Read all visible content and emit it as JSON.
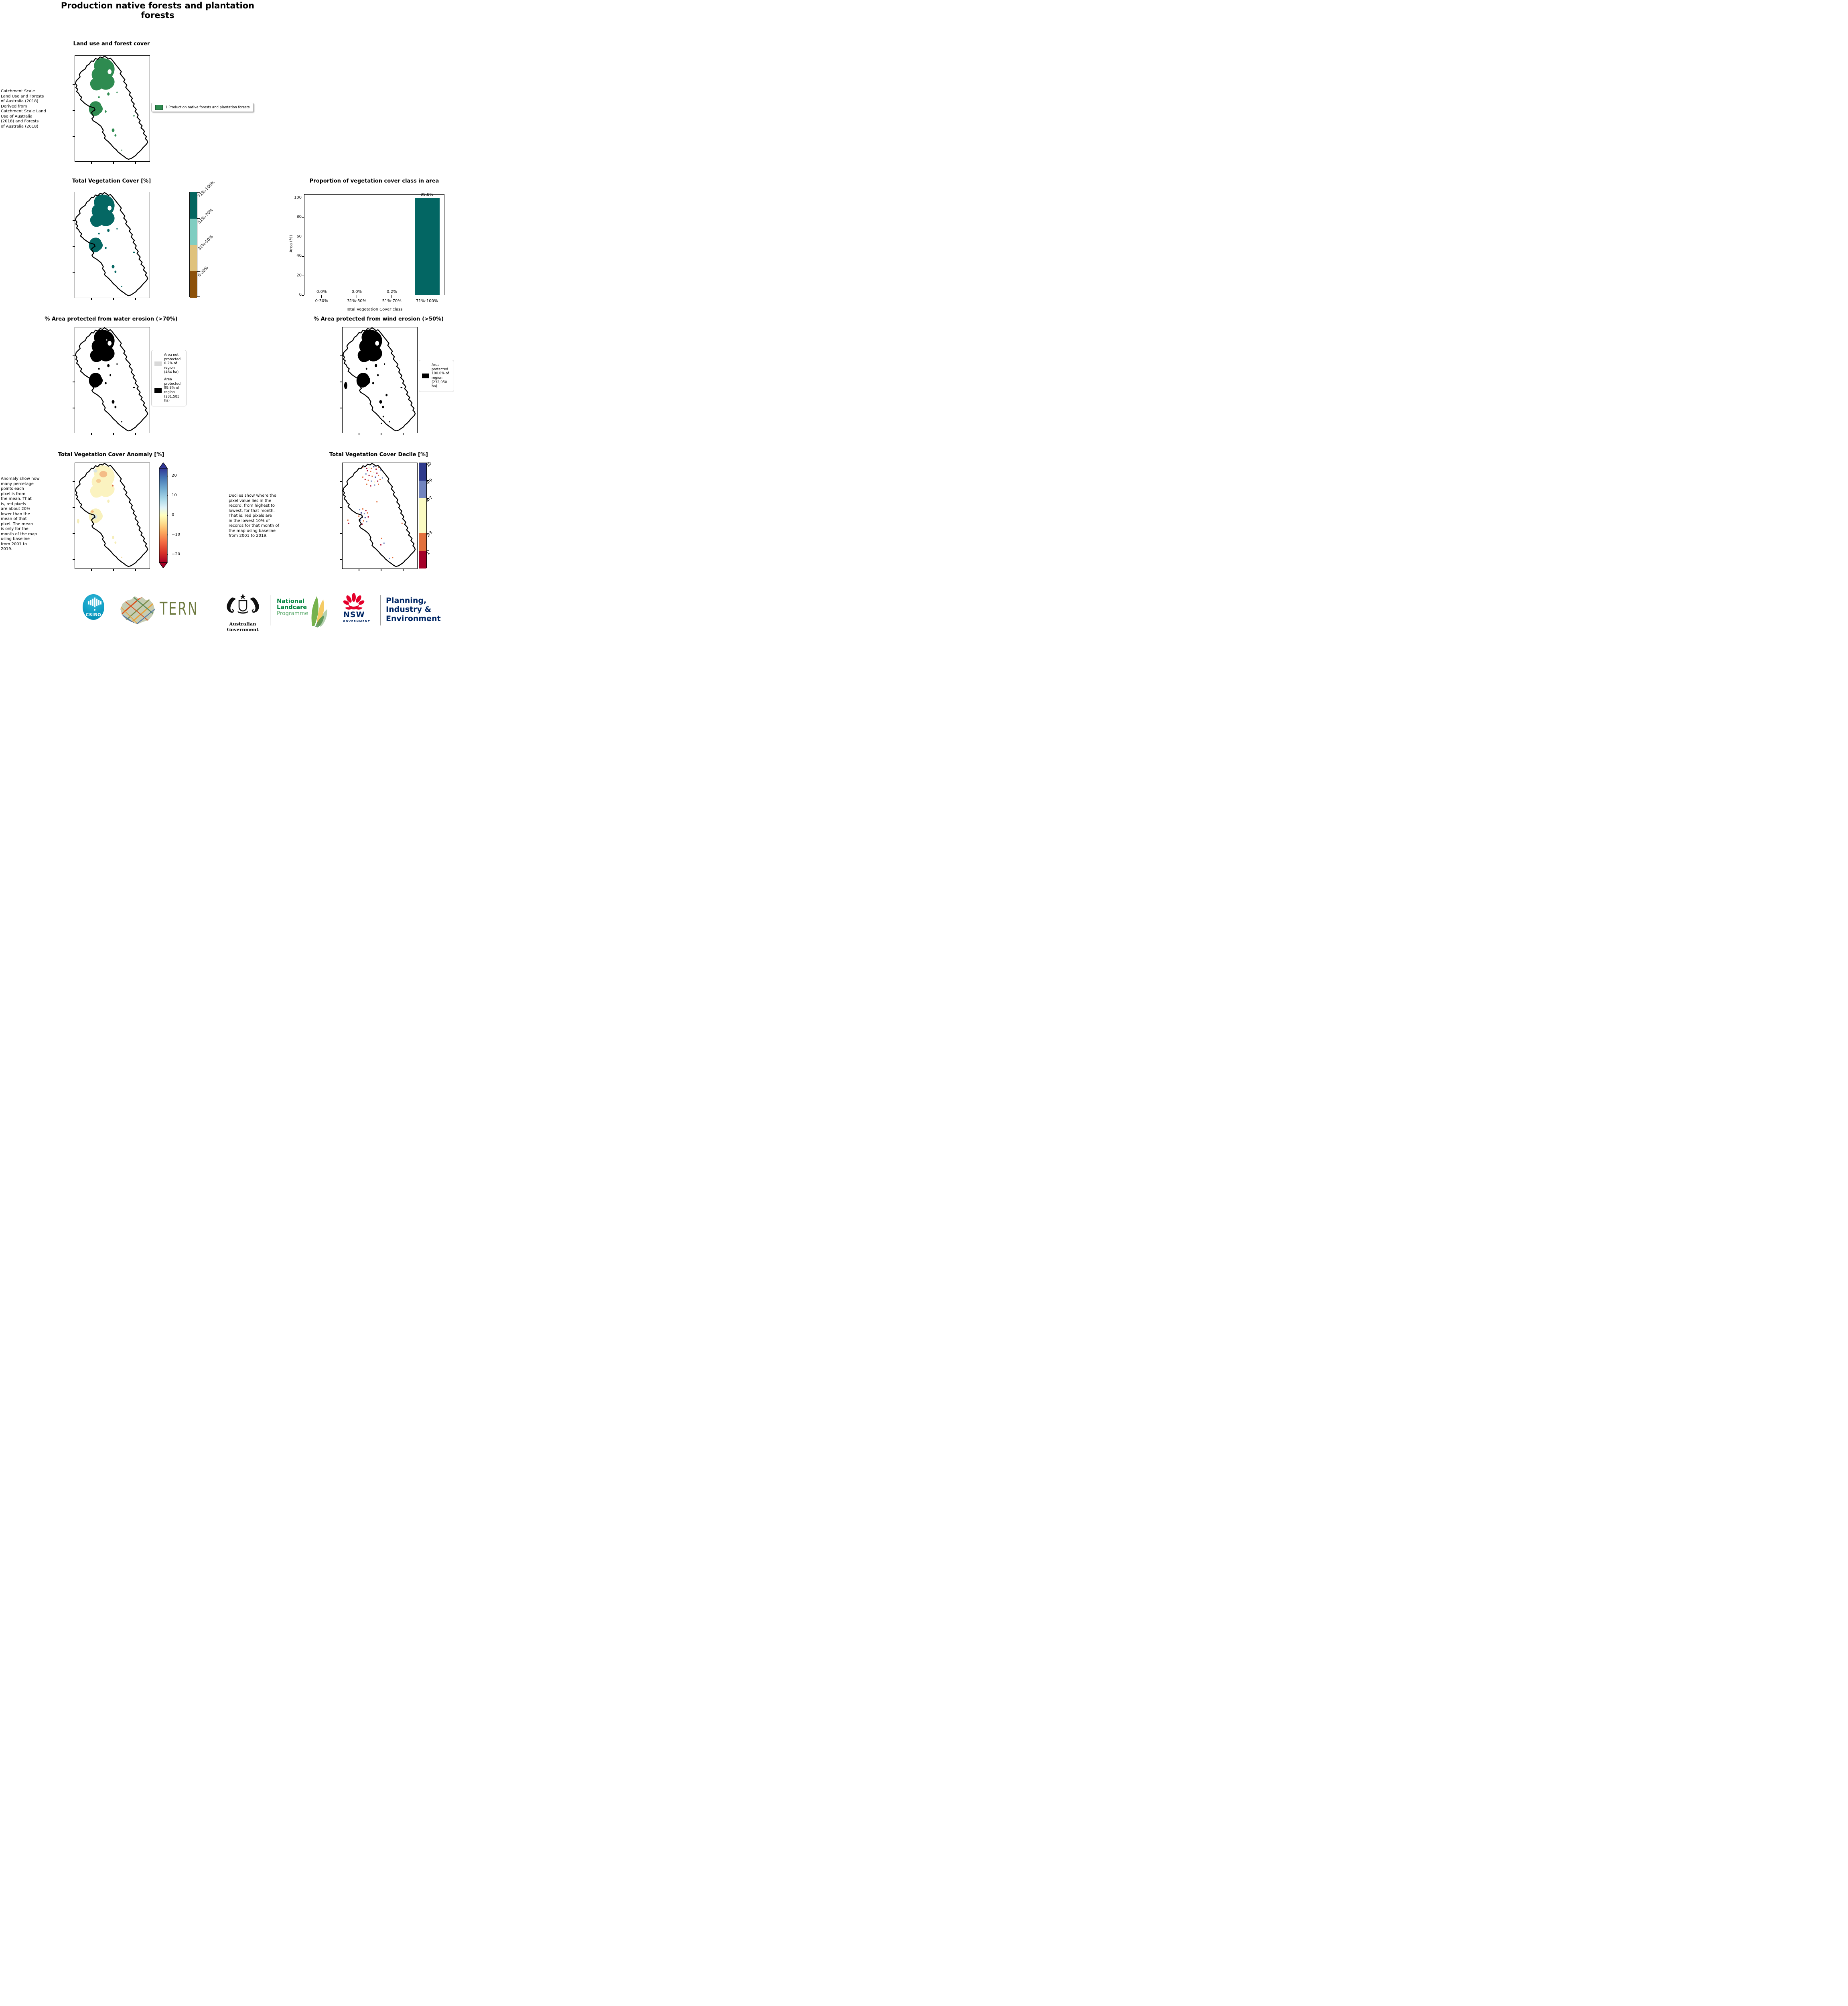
{
  "page_title": "Production native forests and plantation forests",
  "land_use": {
    "title": "Land use and forest cover",
    "side_note": " Catchment Scale\nLand Use and Forests\nof Australia (2018)\nDerived from\nCatchment Scale Land\nUse of Australia\n(2018) and Forests\nof Australia (2018)",
    "legend": [
      {
        "label": "1 Production native forests and plantation forests",
        "color": "#2e8b50"
      }
    ]
  },
  "veg_cover": {
    "title": "Total Vegetation Cover [%]",
    "map_color": "#056763",
    "classes": [
      {
        "label": "71%-100%",
        "color": "#04665f"
      },
      {
        "label": "51%-70%",
        "color": "#80cdc1"
      },
      {
        "label": "31%-50%",
        "color": "#dfc27d"
      },
      {
        "label": "0-30%",
        "color": "#8c510a"
      }
    ]
  },
  "chart_data": {
    "type": "bar",
    "title": "Proportion of vegetation cover class in area",
    "xlabel": "Total Vegetation Cover class",
    "ylabel": "Area (%)",
    "categories": [
      "0-30%",
      "31%-50%",
      "51%-70%",
      "71%-100%"
    ],
    "values": [
      0.0,
      0.0,
      0.2,
      99.8
    ],
    "bar_labels": [
      "0.0%",
      "0.0%",
      "0.2%",
      "99.8%"
    ],
    "yticks": [
      0,
      20,
      40,
      60,
      80,
      100
    ],
    "ylim": [
      0,
      104
    ],
    "bar_color": "#036663",
    "grid": false,
    "legend_position": "none"
  },
  "water_erosion": {
    "title": "% Area protected from water erosion (>70%)",
    "legend": [
      {
        "label": "Area not\nprotected\n0.2% of\nregion\n(464 ha)",
        "color": "#d9d9d9"
      },
      {
        "label": "Area\nprotected\n99.8% of\nregion\n(231,585\nha)",
        "color": "#000000"
      }
    ]
  },
  "wind_erosion": {
    "title": "% Area protected from wind erosion (>50%)",
    "legend": [
      {
        "label": "Area\nprotected\n100.0% of\nregion\n(232,050\nha)",
        "color": "#000000"
      }
    ]
  },
  "anomaly": {
    "title": "Total Vegetation Cover Anomaly [%]",
    "side_note": "Anomaly show how\nmany percetage\npoints each\npixel is from\nthe mean. That\nis, red pixels\nare about 20%\nlower than the\nmean of that\npixel. The mean\nis only for the\nmonth of the map\nusing baseline\nfrom 2001 to\n2019.",
    "colorbar_ticks": [
      "20",
      "10",
      "0",
      "−10",
      "−20"
    ]
  },
  "decile": {
    "title": "Total Vegetation Cover Decile [%]",
    "side_note": "Deciles show where the\npixel value lies in the\nrecord, from highest to\nlowest, for that month.\nThat is, red pixels are\nin the lowest 10% of\nrecords for that month of\nthe map using baseline\nfrom 2001 to 2019.",
    "classes": [
      {
        "label": "10",
        "color": "#2e3a8c"
      },
      {
        "label": "8-9",
        "color": "#7184bf"
      },
      {
        "label": "4-7",
        "color": "#fbfbc2"
      },
      {
        "label": "2-3",
        "color": "#e2703c"
      },
      {
        "label": "1",
        "color": "#a50129"
      }
    ]
  },
  "footer": {
    "csiro_label": "CSIRO",
    "tern_label": "TERN",
    "aus_gov_label": "Australian Government",
    "landcare_line1": "National",
    "landcare_line2": "Landcare",
    "landcare_line3": "Programme",
    "nsw_label": "NSW",
    "nsw_sub": "GOVERNMENT",
    "planning_line1": "Planning,",
    "planning_line2": "Industry &",
    "planning_line3": "Environment",
    "navy": "#002664",
    "nsw_red": "#e4002b",
    "landcare_green": "#00843d"
  }
}
